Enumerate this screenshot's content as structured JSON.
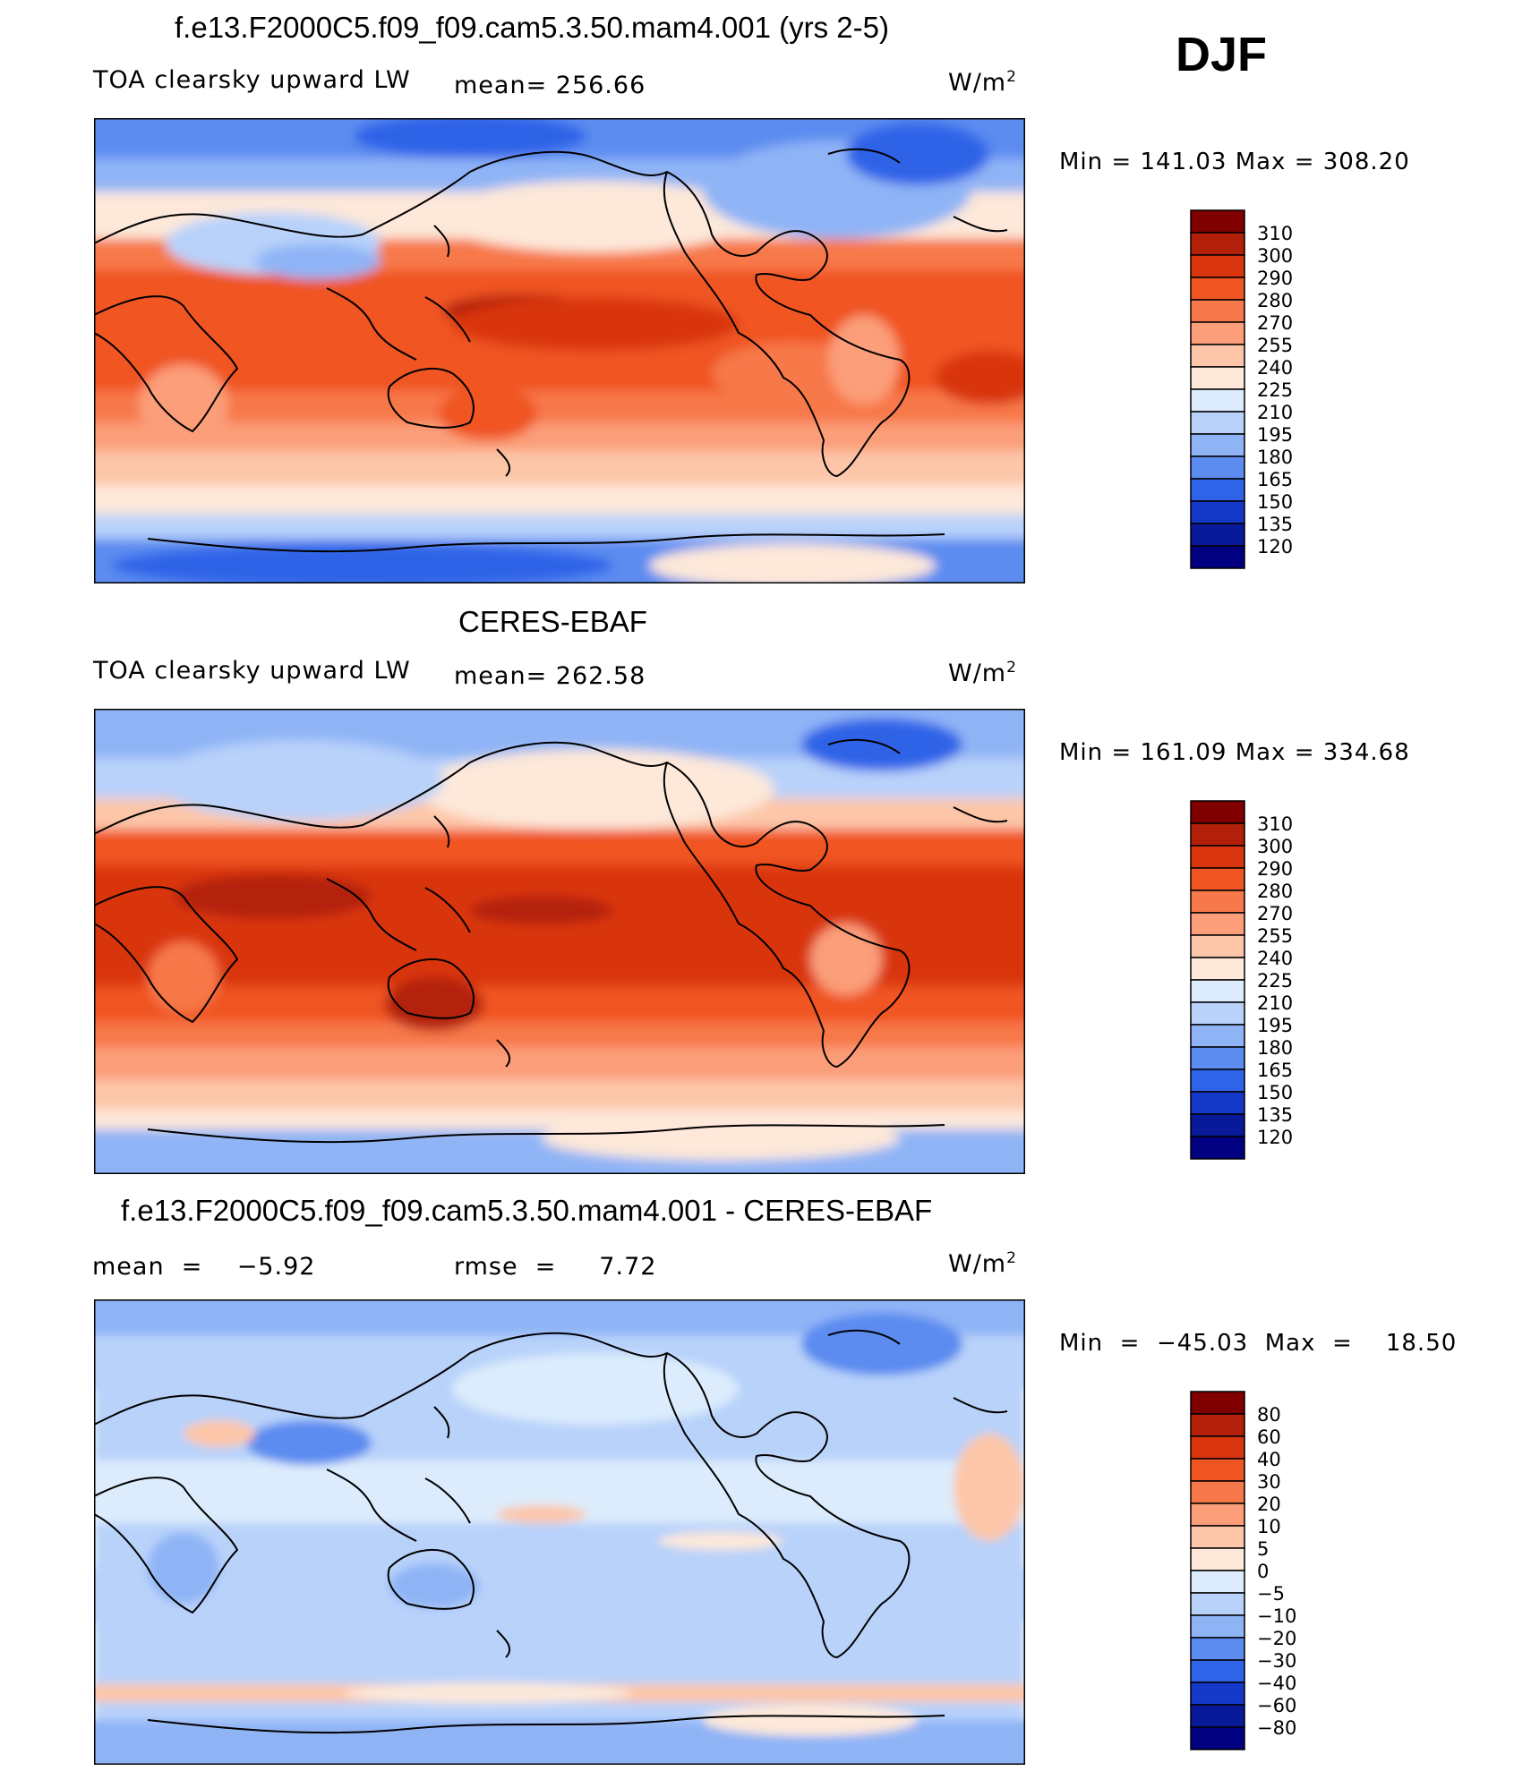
{
  "season": "DJF",
  "panels": [
    {
      "title": "f.e13.F2000C5.f09_f09.cam5.3.50.mam4.001 (yrs 2-5)",
      "left_label": "TOA clearsky upward LW",
      "mid_label": "mean=  256.66",
      "units": "W/m",
      "units_sup": "2",
      "minmax": "Min  =  141.03  Max  =  308.20",
      "colorbar": {
        "labels": [
          "310",
          "300",
          "290",
          "280",
          "270",
          "255",
          "240",
          "225",
          "210",
          "195",
          "180",
          "165",
          "150",
          "135",
          "120"
        ],
        "colors": [
          "#800000",
          "#b3200a",
          "#d9350f",
          "#f05523",
          "#f7784a",
          "#fb9e79",
          "#fdc6a9",
          "#fde8d9",
          "#dcecfc",
          "#b8d2fa",
          "#8fb4f6",
          "#5c8cf0",
          "#2f63e8",
          "#1438c8",
          "#08199a",
          "#000080"
        ]
      }
    },
    {
      "title": "CERES-EBAF",
      "left_label": "TOA clearsky upward LW",
      "mid_label": "mean=  262.58",
      "units": "W/m",
      "units_sup": "2",
      "minmax": "Min  =  161.09  Max  =  334.68",
      "colorbar": {
        "labels": [
          "310",
          "300",
          "290",
          "280",
          "270",
          "255",
          "240",
          "225",
          "210",
          "195",
          "180",
          "165",
          "150",
          "135",
          "120"
        ],
        "colors": [
          "#800000",
          "#b3200a",
          "#d9350f",
          "#f05523",
          "#f7784a",
          "#fb9e79",
          "#fdc6a9",
          "#fde8d9",
          "#dcecfc",
          "#b8d2fa",
          "#8fb4f6",
          "#5c8cf0",
          "#2f63e8",
          "#1438c8",
          "#08199a",
          "#000080"
        ]
      }
    },
    {
      "title": "f.e13.F2000C5.f09_f09.cam5.3.50.mam4.001 - CERES-EBAF",
      "left_label": "mean  =    −5.92",
      "mid_label": "rmse  =     7.72",
      "units": "W/m",
      "units_sup": "2",
      "minmax": "Min  =  −45.03  Max  =    18.50",
      "colorbar": {
        "labels": [
          "80",
          "60",
          "40",
          "30",
          "20",
          "10",
          "5",
          "0",
          "−5",
          "−10",
          "−20",
          "−30",
          "−40",
          "−60",
          "−80"
        ],
        "colors": [
          "#800000",
          "#b3200a",
          "#d9350f",
          "#f05523",
          "#f7784a",
          "#fb9e79",
          "#fdc6a9",
          "#fde8d9",
          "#dcecfc",
          "#b8d2fa",
          "#8fb4f6",
          "#5c8cf0",
          "#2f63e8",
          "#1438c8",
          "#08199a",
          "#000080"
        ]
      }
    }
  ]
}
